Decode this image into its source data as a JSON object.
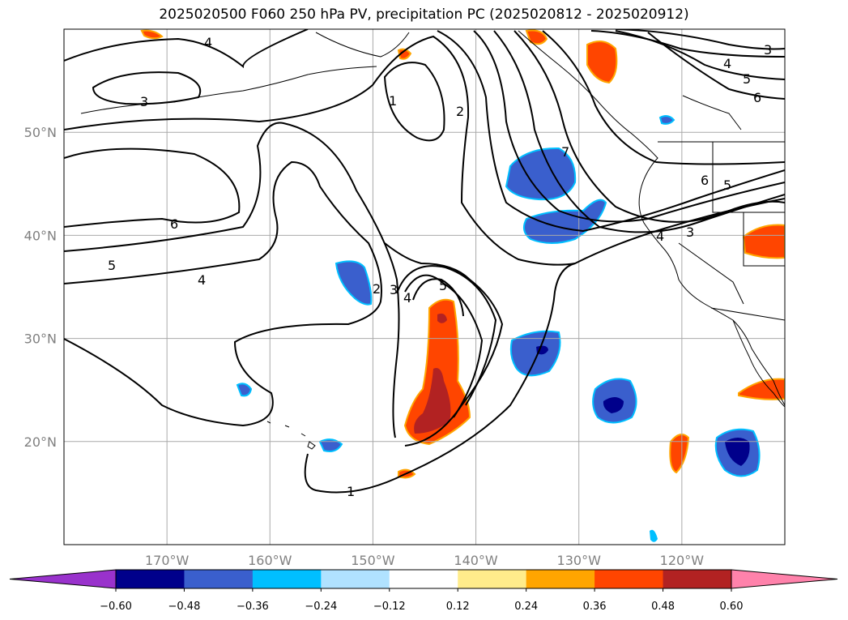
{
  "title": "2025020500 F060 250 hPa PV, precipitation PC (2025020812 - 2025020912)",
  "colors": {
    "neg_strong": "#00008b",
    "neg_mid": "#3a5fcd",
    "neg_light": "#00bfff",
    "neg_pale": "#b0e2ff",
    "pos_pale": "#ffec8b",
    "pos_light": "#ffa500",
    "pos_mid": "#ff4500",
    "pos_strong": "#b22222",
    "over": "#ff82ab",
    "under": "#9932cc",
    "neutral": "#ffffff"
  },
  "map": {
    "lon_range": [
      -180,
      -110
    ],
    "lat_range": [
      10,
      60
    ],
    "lat_ticks": [
      {
        "value": 20,
        "label": "20°N"
      },
      {
        "value": 30,
        "label": "30°N"
      },
      {
        "value": 40,
        "label": "40°N"
      },
      {
        "value": 50,
        "label": "50°N"
      }
    ],
    "lon_ticks": [
      {
        "value": -170,
        "label": "170°W"
      },
      {
        "value": -160,
        "label": "160°W"
      },
      {
        "value": -150,
        "label": "150°W"
      },
      {
        "value": -140,
        "label": "140°W"
      },
      {
        "value": -130,
        "label": "130°W"
      },
      {
        "value": -120,
        "label": "120°W"
      }
    ],
    "contour_labels": [
      "1",
      "2",
      "3",
      "4",
      "5",
      "6",
      "7"
    ]
  },
  "colorbar": {
    "ticks": [
      "−0.60",
      "−0.48",
      "−0.36",
      "−0.24",
      "−0.12",
      "0.12",
      "0.24",
      "0.36",
      "0.48",
      "0.60"
    ]
  }
}
